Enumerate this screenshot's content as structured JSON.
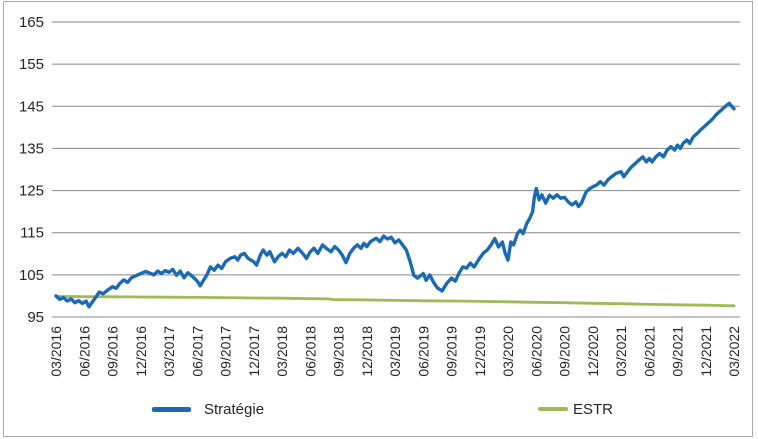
{
  "chart_data": {
    "type": "line",
    "title": "",
    "xlabel": "",
    "ylabel": "",
    "grid": "horizontal",
    "legend_position": "bottom",
    "ylim": [
      95,
      165
    ],
    "y_ticks": [
      95,
      105,
      115,
      125,
      135,
      145,
      155,
      165
    ],
    "x_domain_months": [
      0,
      72
    ],
    "x_tick_labels": [
      "03/2016",
      "06/2016",
      "09/2016",
      "12/2016",
      "03/2017",
      "06/2017",
      "09/2017",
      "12/2017",
      "03/2018",
      "06/2018",
      "09/2018",
      "12/2018",
      "03/2019",
      "06/2019",
      "09/2019",
      "12/2019",
      "03/2020",
      "06/2020",
      "09/2020",
      "12/2020",
      "03/2021",
      "06/2021",
      "09/2021",
      "12/2021",
      "03/2022"
    ],
    "colors": {
      "grid": "#8a8a8a",
      "axis_text": "#262626",
      "frame": "#a8a8a8"
    },
    "series": [
      {
        "name": "Stratégie",
        "color": "#1b6ab3",
        "stroke_width": 3.4,
        "points": [
          [
            0,
            100.0
          ],
          [
            0.4,
            99.2
          ],
          [
            0.8,
            99.6
          ],
          [
            1.2,
            98.8
          ],
          [
            1.6,
            99.3
          ],
          [
            2.0,
            98.4
          ],
          [
            2.4,
            98.9
          ],
          [
            2.8,
            98.2
          ],
          [
            3.2,
            98.8
          ],
          [
            3.5,
            97.4
          ],
          [
            3.8,
            98.4
          ],
          [
            4.2,
            99.6
          ],
          [
            4.6,
            100.9
          ],
          [
            5.0,
            100.5
          ],
          [
            5.5,
            101.4
          ],
          [
            6.0,
            102.2
          ],
          [
            6.4,
            101.8
          ],
          [
            6.8,
            103.0
          ],
          [
            7.2,
            103.8
          ],
          [
            7.6,
            103.2
          ],
          [
            8.0,
            104.3
          ],
          [
            8.5,
            104.8
          ],
          [
            9.0,
            105.3
          ],
          [
            9.5,
            105.8
          ],
          [
            10.0,
            105.4
          ],
          [
            10.4,
            105.0
          ],
          [
            10.8,
            105.9
          ],
          [
            11.2,
            105.3
          ],
          [
            11.6,
            106.0
          ],
          [
            12.0,
            105.6
          ],
          [
            12.4,
            106.3
          ],
          [
            12.8,
            104.9
          ],
          [
            13.2,
            105.9
          ],
          [
            13.6,
            104.3
          ],
          [
            14.0,
            105.5
          ],
          [
            14.5,
            104.6
          ],
          [
            15.0,
            103.5
          ],
          [
            15.3,
            102.4
          ],
          [
            15.7,
            103.8
          ],
          [
            16.0,
            104.9
          ],
          [
            16.4,
            106.9
          ],
          [
            16.8,
            106.1
          ],
          [
            17.2,
            107.3
          ],
          [
            17.6,
            106.5
          ],
          [
            18.0,
            108.1
          ],
          [
            18.5,
            108.9
          ],
          [
            19.0,
            109.3
          ],
          [
            19.3,
            108.5
          ],
          [
            19.6,
            109.7
          ],
          [
            20.0,
            110.1
          ],
          [
            20.4,
            108.9
          ],
          [
            21.0,
            108.1
          ],
          [
            21.3,
            107.3
          ],
          [
            21.7,
            109.7
          ],
          [
            22.0,
            110.9
          ],
          [
            22.4,
            109.7
          ],
          [
            22.7,
            110.5
          ],
          [
            23.2,
            108.1
          ],
          [
            23.6,
            109.3
          ],
          [
            24.0,
            110.1
          ],
          [
            24.4,
            109.3
          ],
          [
            24.8,
            110.9
          ],
          [
            25.2,
            110.1
          ],
          [
            25.7,
            111.3
          ],
          [
            26.2,
            110.1
          ],
          [
            26.6,
            108.9
          ],
          [
            27.0,
            110.5
          ],
          [
            27.4,
            111.3
          ],
          [
            27.8,
            110.1
          ],
          [
            28.3,
            112.1
          ],
          [
            28.7,
            111.3
          ],
          [
            29.2,
            110.5
          ],
          [
            29.6,
            111.7
          ],
          [
            30.0,
            110.9
          ],
          [
            30.4,
            109.7
          ],
          [
            30.8,
            107.9
          ],
          [
            31.2,
            110.1
          ],
          [
            31.6,
            111.3
          ],
          [
            32.0,
            112.1
          ],
          [
            32.4,
            111.3
          ],
          [
            32.7,
            112.5
          ],
          [
            33.0,
            111.7
          ],
          [
            33.4,
            112.9
          ],
          [
            34.0,
            113.7
          ],
          [
            34.4,
            112.9
          ],
          [
            34.8,
            114.2
          ],
          [
            35.2,
            113.5
          ],
          [
            35.6,
            113.9
          ],
          [
            36.0,
            112.6
          ],
          [
            36.4,
            113.3
          ],
          [
            36.8,
            112.1
          ],
          [
            37.2,
            110.9
          ],
          [
            37.6,
            108.2
          ],
          [
            38.0,
            104.9
          ],
          [
            38.4,
            104.2
          ],
          [
            39.0,
            105.3
          ],
          [
            39.3,
            103.7
          ],
          [
            39.7,
            105.0
          ],
          [
            40.1,
            103.2
          ],
          [
            40.5,
            101.9
          ],
          [
            41.0,
            101.2
          ],
          [
            41.5,
            103.0
          ],
          [
            42.0,
            104.2
          ],
          [
            42.4,
            103.5
          ],
          [
            42.8,
            105.4
          ],
          [
            43.2,
            106.9
          ],
          [
            43.6,
            106.6
          ],
          [
            44.0,
            107.8
          ],
          [
            44.4,
            106.9
          ],
          [
            45.0,
            109.0
          ],
          [
            45.4,
            110.2
          ],
          [
            45.8,
            110.9
          ],
          [
            46.2,
            112.1
          ],
          [
            46.6,
            113.6
          ],
          [
            47.0,
            111.6
          ],
          [
            47.4,
            112.8
          ],
          [
            47.7,
            110.1
          ],
          [
            48.0,
            108.5
          ],
          [
            48.3,
            112.8
          ],
          [
            48.6,
            112.1
          ],
          [
            49.0,
            114.8
          ],
          [
            49.3,
            115.6
          ],
          [
            49.6,
            114.8
          ],
          [
            50.0,
            117.2
          ],
          [
            50.3,
            118.4
          ],
          [
            50.6,
            119.9
          ],
          [
            50.8,
            123.5
          ],
          [
            51.0,
            125.5
          ],
          [
            51.3,
            122.8
          ],
          [
            51.6,
            124.0
          ],
          [
            52.0,
            122.0
          ],
          [
            52.4,
            123.9
          ],
          [
            52.8,
            123.2
          ],
          [
            53.2,
            124.0
          ],
          [
            53.6,
            123.2
          ],
          [
            54.0,
            123.4
          ],
          [
            54.4,
            122.3
          ],
          [
            54.8,
            121.6
          ],
          [
            55.2,
            122.3
          ],
          [
            55.5,
            121.2
          ],
          [
            55.8,
            122.0
          ],
          [
            56.3,
            124.7
          ],
          [
            56.7,
            125.5
          ],
          [
            57.0,
            125.9
          ],
          [
            57.4,
            126.3
          ],
          [
            57.8,
            127.1
          ],
          [
            58.2,
            126.3
          ],
          [
            58.6,
            127.5
          ],
          [
            59.0,
            128.3
          ],
          [
            59.5,
            129.1
          ],
          [
            60.0,
            129.5
          ],
          [
            60.3,
            128.3
          ],
          [
            60.7,
            129.5
          ],
          [
            61.1,
            130.6
          ],
          [
            61.5,
            131.4
          ],
          [
            61.9,
            132.2
          ],
          [
            62.3,
            133.0
          ],
          [
            62.7,
            131.8
          ],
          [
            63.0,
            132.6
          ],
          [
            63.3,
            131.8
          ],
          [
            63.7,
            133.0
          ],
          [
            64.1,
            133.8
          ],
          [
            64.5,
            133.0
          ],
          [
            64.9,
            134.6
          ],
          [
            65.3,
            135.4
          ],
          [
            65.7,
            134.6
          ],
          [
            66.0,
            135.8
          ],
          [
            66.3,
            135.0
          ],
          [
            66.6,
            136.2
          ],
          [
            67.0,
            137.0
          ],
          [
            67.3,
            136.2
          ],
          [
            67.7,
            137.8
          ],
          [
            68.1,
            138.6
          ],
          [
            68.5,
            139.5
          ],
          [
            68.9,
            140.3
          ],
          [
            69.3,
            141.1
          ],
          [
            69.7,
            141.9
          ],
          [
            70.1,
            143.0
          ],
          [
            70.5,
            143.8
          ],
          [
            70.9,
            144.6
          ],
          [
            71.2,
            145.2
          ],
          [
            71.5,
            145.7
          ],
          [
            71.8,
            144.9
          ],
          [
            72.0,
            144.4
          ]
        ]
      },
      {
        "name": "ESTR",
        "color": "#9ebb57",
        "stroke_width": 2.8,
        "points": [
          [
            0,
            99.9
          ],
          [
            3,
            99.85
          ],
          [
            6,
            99.8
          ],
          [
            9,
            99.75
          ],
          [
            12,
            99.7
          ],
          [
            15,
            99.65
          ],
          [
            18,
            99.6
          ],
          [
            21,
            99.5
          ],
          [
            24,
            99.45
          ],
          [
            27,
            99.35
          ],
          [
            29,
            99.3
          ],
          [
            29.5,
            99.1
          ],
          [
            33,
            99.05
          ],
          [
            36,
            98.95
          ],
          [
            39,
            98.85
          ],
          [
            42,
            98.8
          ],
          [
            45,
            98.7
          ],
          [
            48,
            98.6
          ],
          [
            51,
            98.5
          ],
          [
            54,
            98.4
          ],
          [
            57,
            98.25
          ],
          [
            60,
            98.15
          ],
          [
            63,
            98.0
          ],
          [
            66,
            97.9
          ],
          [
            69,
            97.8
          ],
          [
            72,
            97.65
          ]
        ]
      }
    ]
  }
}
